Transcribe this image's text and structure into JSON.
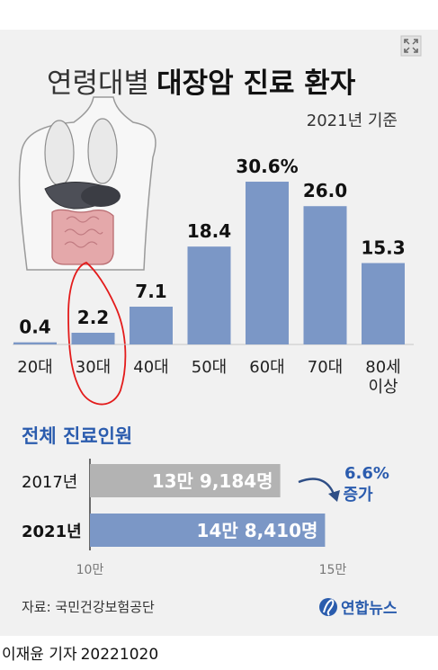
{
  "title": {
    "light": "연령대별",
    "bold": "대장암 진료 환자"
  },
  "subtitle": "2021년 기준",
  "icons": {
    "expand": "expand-icon",
    "illustration": "human-torso-organs-icon",
    "logo": "yonhap-logo-icon"
  },
  "colors": {
    "bar": "#7b97c6",
    "bar_gray": "#b3b3b3",
    "card_bg": "#f1f1f1",
    "annotation": "#e31b1b",
    "heading": "#2b5cae"
  },
  "chart_data": [
    {
      "type": "bar",
      "title": "연령대별 대장암 진료 환자",
      "subtitle": "2021년 기준",
      "categories": [
        "20대",
        "30대",
        "40대",
        "50대",
        "60대",
        "70대",
        "80세 이상"
      ],
      "values": [
        0.4,
        2.2,
        7.1,
        18.4,
        30.6,
        26.0,
        15.3
      ],
      "value_labels": [
        "0.4",
        "2.2",
        "7.1",
        "18.4",
        "30.6%",
        "26.0",
        "15.3"
      ],
      "unit": "%",
      "ylim": [
        0,
        35
      ],
      "grid": false,
      "legend": "none"
    },
    {
      "type": "bar",
      "orientation": "horizontal",
      "title": "전체 진료인원",
      "categories": [
        "2017년",
        "2021년"
      ],
      "values": [
        139184,
        148410
      ],
      "value_labels": [
        "13만 9,184명",
        "14만 8,410명"
      ],
      "xlim": [
        100000,
        150000
      ],
      "xtick_labels": [
        "10만",
        "15만"
      ],
      "annotation": {
        "value": "6.6%",
        "text": "증가"
      }
    }
  ],
  "source": "자료: 국민건강보험공단",
  "logo_text": "연합뉴스",
  "credit": {
    "author": "이재윤 기자",
    "date": "20221020"
  }
}
